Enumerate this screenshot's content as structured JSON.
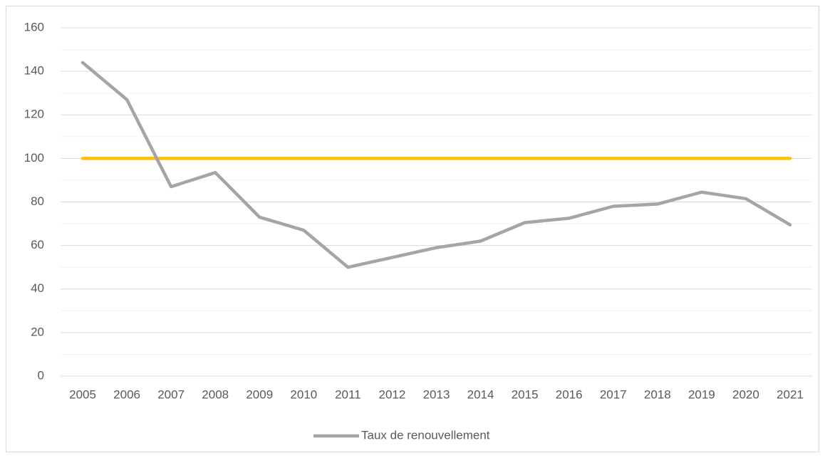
{
  "chart_data": {
    "type": "line",
    "categories": [
      "2005",
      "2006",
      "2007",
      "2008",
      "2009",
      "2010",
      "2011",
      "2012",
      "2013",
      "2014",
      "2015",
      "2016",
      "2017",
      "2018",
      "2019",
      "2020",
      "2021"
    ],
    "series": [
      {
        "name": "Taux de renouvellement",
        "color": "#a5a5a5",
        "values": [
          144,
          127,
          87,
          93.5,
          73,
          67,
          50,
          54.5,
          59,
          62,
          70.5,
          72.5,
          78,
          79,
          84.5,
          81.5,
          69.5
        ]
      },
      {
        "color": "#ffc000",
        "values": [
          100,
          100,
          100,
          100,
          100,
          100,
          100,
          100,
          100,
          100,
          100,
          100,
          100,
          100,
          100,
          100,
          100
        ]
      }
    ],
    "ylim": [
      0,
      160
    ],
    "yticks": [
      0,
      20,
      40,
      60,
      80,
      100,
      120,
      140,
      160
    ],
    "yminor_ticks": [
      10,
      30,
      50,
      70,
      90,
      110,
      130,
      150
    ],
    "grid": true,
    "legend": "bottom"
  }
}
